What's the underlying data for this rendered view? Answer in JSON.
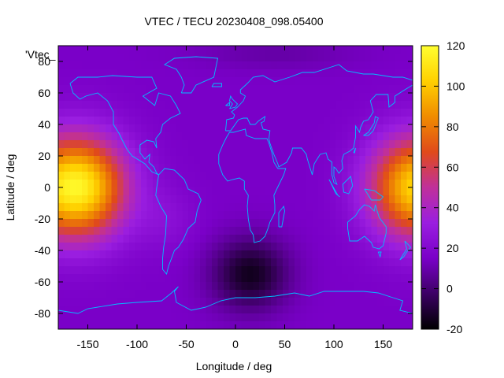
{
  "chart_data": {
    "type": "heatmap",
    "title": "VTEC / TECU 20230408_098.05400",
    "xlabel": "Longitude / deg",
    "ylabel": "Latitude / deg",
    "key_label": "'Vtec_",
    "xlim": [
      -180,
      180
    ],
    "ylim": [
      -90,
      90
    ],
    "x_ticks": [
      -150,
      -100,
      -50,
      0,
      50,
      100,
      150
    ],
    "y_ticks": [
      -80,
      -60,
      -40,
      -20,
      0,
      20,
      40,
      60,
      80
    ],
    "colorbar": {
      "range": [
        -20,
        120
      ],
      "ticks": [
        -20,
        0,
        20,
        40,
        60,
        80,
        100,
        120
      ],
      "palette": [
        "#000000",
        "#3c0064",
        "#7a00c8",
        "#9a1ee0",
        "#c0309a",
        "#e04a1a",
        "#f08c00",
        "#ffd000",
        "#ffff30"
      ]
    },
    "features": [
      {
        "name": "peak-west",
        "lon": -160,
        "lat": 0,
        "value": 115
      },
      {
        "name": "peak-east",
        "lon": 185,
        "lat": 0,
        "value": 105
      },
      {
        "name": "low-south-atlantic",
        "lon": 15,
        "lat": -55,
        "value": -15
      },
      {
        "name": "background",
        "value": 15
      }
    ],
    "grid": false,
    "coastline_color": "#00bfff"
  }
}
